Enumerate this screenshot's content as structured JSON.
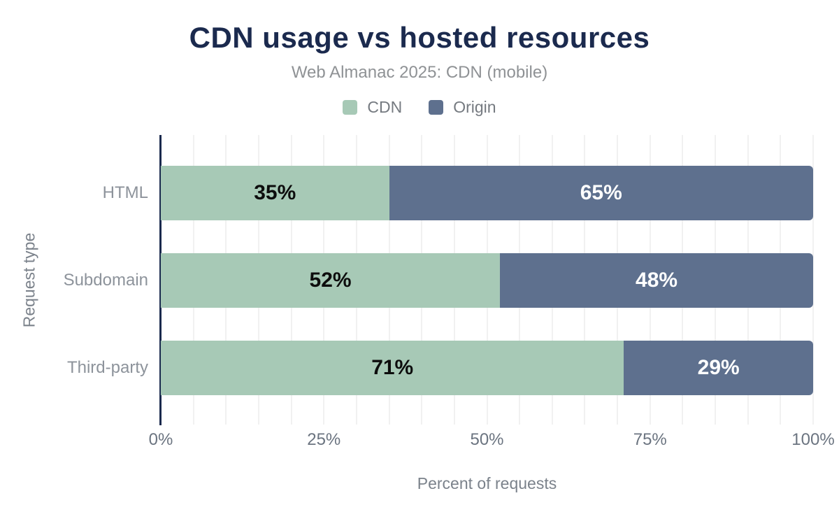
{
  "header": {
    "title": "CDN usage vs hosted resources",
    "subtitle": "Web Almanac 2025: CDN (mobile)"
  },
  "legend": [
    {
      "label": "CDN",
      "color": "#a7c9b6"
    },
    {
      "label": "Origin",
      "color": "#5e708e"
    }
  ],
  "colors": {
    "title": "#1b2a4e",
    "axis_line": "#1b2a4e",
    "gridline": "#f1f1f1",
    "cdn_green": "#a7c9b6",
    "origin_slate": "#5e708e",
    "label_on_cdn": "#0d0d0d",
    "label_on_origin": "#ffffff"
  },
  "chart_data": {
    "type": "bar",
    "orientation": "horizontal",
    "stacked": true,
    "title": "CDN usage vs hosted resources",
    "subtitle": "Web Almanac 2025: CDN (mobile)",
    "xlabel": "Percent of requests",
    "ylabel": "Request type",
    "xlim": [
      0,
      100
    ],
    "grid": "vertical, every 5%",
    "legend_position": "top-center",
    "categories": [
      "HTML",
      "Subdomain",
      "Third-party"
    ],
    "series": [
      {
        "name": "CDN",
        "color": "#a7c9b6",
        "values": [
          35,
          52,
          71
        ]
      },
      {
        "name": "Origin",
        "color": "#5e708e",
        "values": [
          65,
          48,
          29
        ]
      }
    ],
    "bar_labels": [
      [
        "35%",
        "65%"
      ],
      [
        "52%",
        "48%"
      ],
      [
        "71%",
        "29%"
      ]
    ],
    "x_ticks": [
      "0%",
      "25%",
      "50%",
      "75%",
      "100%"
    ],
    "x_tick_positions": [
      0,
      25,
      50,
      75,
      100
    ]
  }
}
